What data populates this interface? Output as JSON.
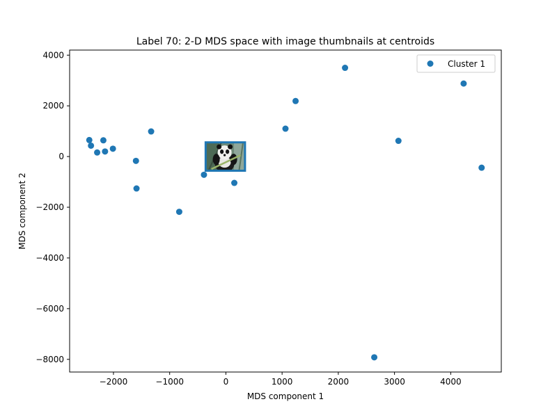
{
  "chart_data": {
    "type": "scatter",
    "title": "Label 70: 2-D MDS space with image thumbnails at centroids",
    "xlabel": "MDS component 1",
    "ylabel": "MDS component 2",
    "xlim": [
      -2780,
      4900
    ],
    "ylim": [
      -8500,
      4200
    ],
    "xticks": [
      -2000,
      -1000,
      0,
      1000,
      2000,
      3000,
      4000
    ],
    "yticks": [
      -8000,
      -6000,
      -4000,
      -2000,
      0,
      2000,
      4000
    ],
    "xtick_labels": [
      "−2000",
      "−1000",
      "0",
      "1000",
      "2000",
      "3000",
      "4000"
    ],
    "ytick_labels": [
      "−8000",
      "−6000",
      "−4000",
      "−2000",
      "0",
      "2000",
      "4000"
    ],
    "grid": false,
    "legend_position": "top-right",
    "series": [
      {
        "name": "Cluster 1",
        "color": "#1f77b4",
        "points": [
          {
            "x": -2430,
            "y": 650
          },
          {
            "x": -2400,
            "y": 430
          },
          {
            "x": -2290,
            "y": 160
          },
          {
            "x": -2180,
            "y": 640
          },
          {
            "x": -2150,
            "y": 200
          },
          {
            "x": -2010,
            "y": 310
          },
          {
            "x": -1600,
            "y": -170
          },
          {
            "x": -1590,
            "y": -1260
          },
          {
            "x": -1330,
            "y": 990
          },
          {
            "x": -830,
            "y": -2180
          },
          {
            "x": -390,
            "y": -720
          },
          {
            "x": 150,
            "y": -1040
          },
          {
            "x": 1060,
            "y": 1100
          },
          {
            "x": 1240,
            "y": 2190
          },
          {
            "x": 2120,
            "y": 3500
          },
          {
            "x": 2640,
            "y": -7920
          },
          {
            "x": 3070,
            "y": 620
          },
          {
            "x": 4230,
            "y": 2880
          },
          {
            "x": 4550,
            "y": -440
          }
        ]
      }
    ],
    "thumbnail": {
      "description_icon": "panda-thumbnail-icon",
      "center": {
        "x": 0,
        "y": 0
      },
      "extent_x": [
        -360,
        340
      ],
      "extent_y": [
        -560,
        560
      ],
      "border_color": "#1f77b4"
    }
  }
}
